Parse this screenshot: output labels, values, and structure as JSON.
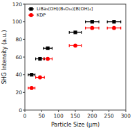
{
  "chart_data": {
    "type": "scatter",
    "xlabel": "Particle Size (μm)",
    "ylabel": "SHG Intensity (a.u.)",
    "xlim": [
      0,
      300
    ],
    "ylim": [
      0,
      120
    ],
    "xticks": [
      0,
      50,
      100,
      150,
      200,
      250,
      300
    ],
    "yticks": [
      0,
      20,
      40,
      60,
      80,
      100,
      120
    ],
    "legend": "top-left",
    "series": [
      {
        "name": "LiBa₃(OH)(B₉O₁₆)[B(OH)₄]",
        "color": "black",
        "marker": "square",
        "x": [
          20,
          45,
          68,
          150,
          200,
          265
        ],
        "values": [
          40,
          58,
          70,
          88,
          100,
          100
        ],
        "xerr": [
          10,
          13,
          13,
          18,
          20,
          20
        ]
      },
      {
        "name": "KDP",
        "color": "red",
        "marker": "circle",
        "x": [
          20,
          45,
          68,
          150,
          200,
          265
        ],
        "values": [
          25,
          37,
          58,
          73,
          93,
          93
        ],
        "xerr": [
          10,
          13,
          13,
          18,
          20,
          20
        ]
      }
    ]
  }
}
